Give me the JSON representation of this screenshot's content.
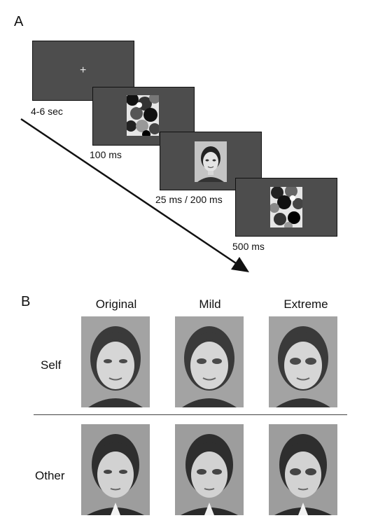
{
  "panel_a": {
    "label": "A",
    "timings": [
      "4-6 sec",
      "100 ms",
      "25 ms / 200 ms",
      "500 ms"
    ],
    "fixation": "+"
  },
  "panel_b": {
    "label": "B",
    "columns": [
      "Original",
      "Mild",
      "Extreme"
    ],
    "rows": [
      "Self",
      "Other"
    ]
  },
  "colors": {
    "screen_gray": "#4d4d4d",
    "photo_gray": "#9a9a9a"
  }
}
